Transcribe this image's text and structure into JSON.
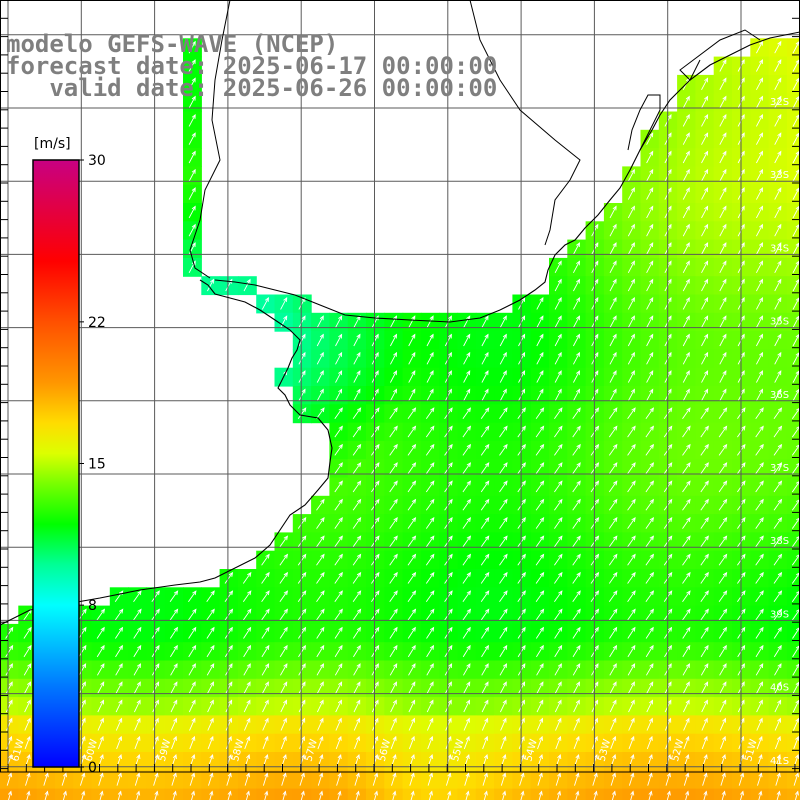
{
  "title": {
    "line1": "modelo GEFS-WAVE (NCEP)",
    "line2": "forecast date: 2025-06-17 00:00:00",
    "line3": "   valid date: 2025-06-26 00:00:00"
  },
  "colorbar": {
    "unit": "[m/s]",
    "ticks": [
      {
        "value": 30,
        "label": "30"
      },
      {
        "value": 22,
        "label": "22"
      },
      {
        "value": 15,
        "label": "15"
      },
      {
        "value": 8,
        "label": "8"
      },
      {
        "value": 0,
        "label": "0"
      }
    ],
    "min": 0,
    "max": 30,
    "colors": [
      "#0000ff",
      "#0080ff",
      "#00ffff",
      "#00ff80",
      "#00ff00",
      "#80ff00",
      "#ffff00",
      "#ffa000",
      "#ff5000",
      "#ff0000",
      "#d00070",
      "#c00080"
    ]
  },
  "axes": {
    "lat_labels": [
      "32S",
      "33S",
      "34S",
      "35S",
      "36S",
      "37S",
      "38S",
      "39S",
      "40S",
      "41S"
    ],
    "lon_labels": [
      "61W",
      "60W",
      "59W",
      "58W",
      "57W",
      "56W",
      "55W",
      "54W",
      "53W",
      "52W",
      "51W"
    ],
    "lat_range": [
      -41.4,
      -31.0
    ],
    "lon_range": [
      -61.2,
      -50.4
    ]
  },
  "chart_data": {
    "type": "heatmap",
    "title": "modelo GEFS-WAVE (NCEP)",
    "variable_unit": "m/s",
    "value_range": [
      0,
      30
    ],
    "field_description_points": [
      {
        "lon": -60.0,
        "lat": -40.8,
        "speed": 17.5
      },
      {
        "lon": -58.0,
        "lat": -40.5,
        "speed": 17
      },
      {
        "lon": -55.0,
        "lat": -41.0,
        "speed": 16.5
      },
      {
        "lon": -52.0,
        "lat": -41.0,
        "speed": 17
      },
      {
        "lon": -56.0,
        "lat": -39.0,
        "speed": 14
      },
      {
        "lon": -56.0,
        "lat": -37.0,
        "speed": 12.5
      },
      {
        "lon": -57.2,
        "lat": -36.2,
        "speed": 10
      },
      {
        "lon": -58.0,
        "lat": -34.8,
        "speed": 9
      },
      {
        "lon": -52.0,
        "lat": -34.0,
        "speed": 14
      },
      {
        "lon": -51.0,
        "lat": -33.0,
        "speed": 13.5
      }
    ],
    "arrow_direction": "from southwest to northeast"
  },
  "colors": {
    "land": "#ffffff",
    "coast": "#000000",
    "grid": "#606060",
    "title": "#7f7f7f"
  }
}
